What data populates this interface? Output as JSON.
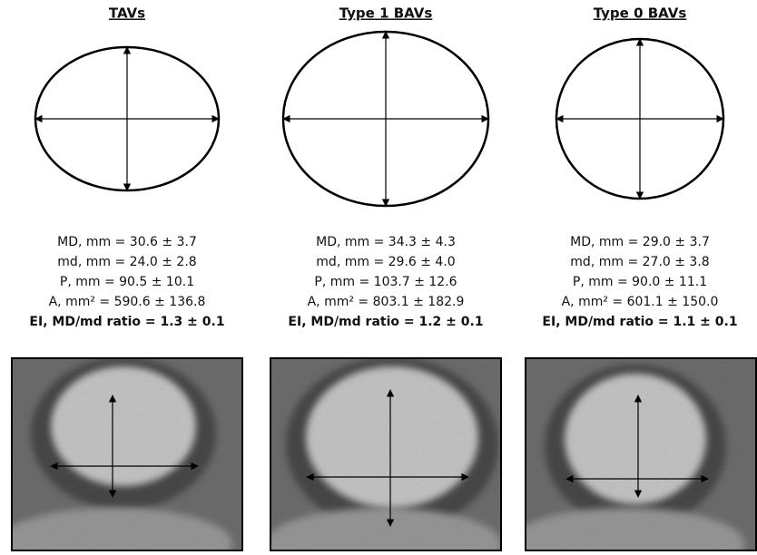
{
  "panels": [
    {
      "title": "TAVs",
      "lines": [
        "MD, mm = 30.6 ± 3.7",
        "md, mm = 24.0 ± 2.8",
        "P, mm = 90.5 ± 10.1",
        "A, mm² = 590.6 ± 136.8",
        "EI, MD/md ratio = 1.3 ± 0.1"
      ]
    },
    {
      "title": "Type 1 BAVs",
      "lines": [
        "MD, mm = 34.3 ± 4.3",
        "md, mm = 29.6 ± 4.0",
        "P, mm = 103.7 ± 12.6",
        "A, mm² = 803.1 ± 182.9",
        "EI, MD/md ratio = 1.2 ± 0.1"
      ]
    },
    {
      "title": "Type 0 BAVs",
      "lines": [
        "MD, mm = 29.0 ± 3.7",
        "md, mm = 27.0 ± 3.8",
        "P, mm = 90.0 ± 11.1",
        "A, mm² = 601.1 ± 150.0",
        "EI, MD/md ratio = 1.1 ± 0.1"
      ]
    }
  ]
}
